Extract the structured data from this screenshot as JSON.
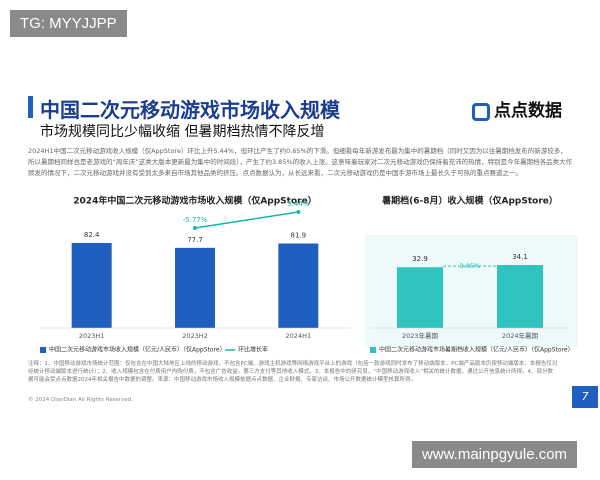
{
  "watermark_top": "TG: MYYJJPP",
  "watermark_bottom": "www.mainpgyule.com",
  "header": {
    "title": "中国二次元移动游戏市场收入规模",
    "subtitle": "市场规模同比少幅收缩 但暑期档热情不降反增",
    "logo": "点点数据"
  },
  "body": "2024H1中国二次元移动游戏收入规模（仅AppStore）环比上升5.44%，但环比产生了约0.65%的下滑。但细看每年新游发布最为集中的暑期档（同时又因为以往暑期档发布的新游较多，所以暑期档同样也是老游戏的“周年庆”这类大版本更新最为集中的时间段），产生了约3.85%的收入上涨。这意味着玩家对二次元移动游戏仍保持着充沛的热情，特别是今年暑期档各品类大作频发的情况下，二次元移动游戏并没有受到太多来自市场其他品类的挤压。点点数据认为，从长远来看，二次元移动游戏仍是中国手游市场上最长久于可热的重点赛道之一。",
  "chart_data": [
    {
      "type": "bar",
      "title": "2024年中国二次元移动游戏市场收入规模（仅AppStore）",
      "categories": [
        "2023H1",
        "2023H2",
        "2024H1"
      ],
      "series": [
        {
          "name": "中国二次元移动游戏市场收入规模（亿元/人民币）（仅AppStore）",
          "color": "#1f5fbf",
          "values": [
            82.4,
            77.7,
            81.9
          ]
        },
        {
          "name": "环比增长率",
          "type": "line",
          "axis": "y2",
          "color": "#17b5b0",
          "values": [
            null,
            -5.77,
            5.44
          ],
          "value_labels": [
            null,
            "-5.77%",
            "5.44%"
          ]
        }
      ]
    },
    {
      "type": "bar",
      "title": "暑期档(6-8月）收入规模（仅AppStore）",
      "categories": [
        "2023年暑期",
        "2024年暑期"
      ],
      "series": [
        {
          "name": "中国二次元移动游戏市场暑期档收入规模（亿元/人民币）（仅AppStore）",
          "color": "#2ec4c0",
          "values": [
            32.9,
            34.1
          ]
        }
      ],
      "annotation": "3.85%"
    }
  ],
  "notes": "注释：1、中国移动游戏市场统计范围：仅包含在中国大陆地区上线的移动游戏，不包含PC端、游戏主机游戏等网络游戏平台上的游戏（包括一款游戏同时发布了移动端版本，PC端产品版本仍按移动端版本，本报告仅对经统计移动端版本进行统计）；2、收入规模包含在付费用户内购付费，不包含广告收益。第三方支付等其他收入模式。3、本报告中的研究员，“中国移动游戏收入”相关的统计数据，通过公开信息统计所得。4、部分数据可能会受点点数据2024年相关报告中数据的调整。来源：中国移动游戏市场收入规模依据点点数据、企业财报、专家访谈、市场公开数据统计模型核算所得。",
  "copyright": "© 2024 DianDian All Rights Reserved.",
  "page_number": "7"
}
